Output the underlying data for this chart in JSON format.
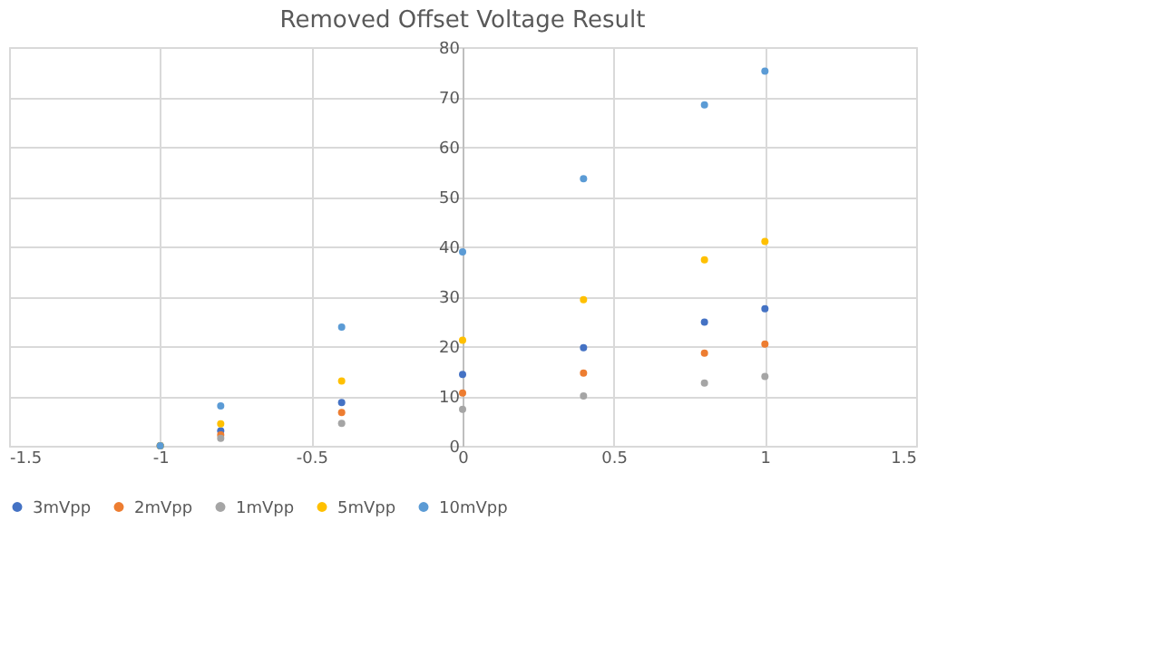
{
  "chart_data": {
    "type": "scatter",
    "title": "Removed Offset Voltage Result",
    "x": [
      -1,
      -0.8,
      -0.4,
      0,
      0.4,
      0.8,
      1
    ],
    "series": [
      {
        "name": "3mVpp",
        "color": "#4472c4",
        "values": [
          0,
          3,
          8.7,
          14.3,
          19.7,
          24.8,
          27.5
        ]
      },
      {
        "name": "2mVpp",
        "color": "#ed7d31",
        "values": [
          0,
          2.2,
          6.7,
          10.6,
          14.6,
          18.6,
          20.4
        ]
      },
      {
        "name": "1mVpp",
        "color": "#a5a5a5",
        "values": [
          0,
          1.5,
          4.5,
          7.3,
          10,
          12.6,
          13.9
        ]
      },
      {
        "name": "5mVpp",
        "color": "#ffc000",
        "values": [
          0,
          4.4,
          13,
          21.2,
          29.3,
          37.3,
          41
        ]
      },
      {
        "name": "10mVpp",
        "color": "#5b9bd5",
        "values": [
          0,
          8,
          23.8,
          38.9,
          53.6,
          68.4,
          75.2
        ]
      }
    ],
    "xlim": [
      -1.5,
      1.5
    ],
    "xticks": [
      -1.5,
      -1,
      -0.5,
      0,
      0.5,
      1,
      1.5
    ],
    "ylim": [
      0,
      80
    ],
    "yticks": [
      0,
      10,
      20,
      30,
      40,
      50,
      60,
      70,
      80
    ],
    "grid": true,
    "legend": "bottom",
    "marker": "circle"
  }
}
